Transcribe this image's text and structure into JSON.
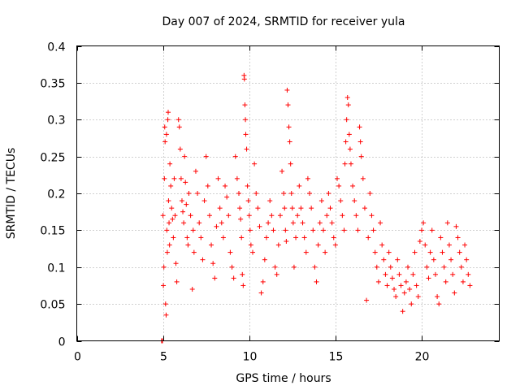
{
  "chart_data": {
    "type": "scatter",
    "title": "Day 007 of 2024, SRMTID for receiver yula",
    "xlabel": "GPS time / hours",
    "ylabel": "SRMTID / TECUs",
    "xlim": [
      0,
      24.5
    ],
    "ylim": [
      0,
      0.4
    ],
    "x_ticks": [
      0,
      5,
      10,
      15,
      20
    ],
    "x_tick_labels": [
      "0",
      "5",
      "10",
      "15",
      "20"
    ],
    "y_ticks": [
      0,
      0.05,
      0.1,
      0.15,
      0.2,
      0.25,
      0.3,
      0.35,
      0.4
    ],
    "y_tick_labels": [
      "0",
      "0.05",
      "0.1",
      "0.15",
      "0.2",
      "0.25",
      "0.3",
      "0.35",
      "0.4"
    ],
    "grid": true,
    "marker": "+",
    "color": "#ff0000",
    "series": [
      {
        "name": "SRMTID",
        "points": [
          [
            4.92,
            0.0
          ],
          [
            4.95,
            0.0
          ],
          [
            4.97,
            0.0
          ],
          [
            5.0,
            0.17
          ],
          [
            5.02,
            0.075
          ],
          [
            5.05,
            0.1
          ],
          [
            5.08,
            0.22
          ],
          [
            5.1,
            0.29
          ],
          [
            5.12,
            0.27
          ],
          [
            5.15,
            0.05
          ],
          [
            5.18,
            0.035
          ],
          [
            5.2,
            0.28
          ],
          [
            5.22,
            0.15
          ],
          [
            5.25,
            0.12
          ],
          [
            5.28,
            0.3
          ],
          [
            5.3,
            0.31
          ],
          [
            5.32,
            0.19
          ],
          [
            5.35,
            0.16
          ],
          [
            5.38,
            0.13
          ],
          [
            5.4,
            0.24
          ],
          [
            5.45,
            0.21
          ],
          [
            5.5,
            0.18
          ],
          [
            5.55,
            0.165
          ],
          [
            5.6,
            0.14
          ],
          [
            5.65,
            0.22
          ],
          [
            5.7,
            0.17
          ],
          [
            5.75,
            0.105
          ],
          [
            5.8,
            0.08
          ],
          [
            5.9,
            0.3
          ],
          [
            5.95,
            0.29
          ],
          [
            6.0,
            0.26
          ],
          [
            6.05,
            0.22
          ],
          [
            6.1,
            0.19
          ],
          [
            6.15,
            0.175
          ],
          [
            6.2,
            0.16
          ],
          [
            6.25,
            0.25
          ],
          [
            6.3,
            0.215
          ],
          [
            6.35,
            0.185
          ],
          [
            6.4,
            0.14
          ],
          [
            6.45,
            0.13
          ],
          [
            6.5,
            0.2
          ],
          [
            6.6,
            0.17
          ],
          [
            6.7,
            0.07
          ],
          [
            6.75,
            0.15
          ],
          [
            6.8,
            0.12
          ],
          [
            6.9,
            0.23
          ],
          [
            7.0,
            0.2
          ],
          [
            7.1,
            0.16
          ],
          [
            7.2,
            0.14
          ],
          [
            7.3,
            0.11
          ],
          [
            7.4,
            0.19
          ],
          [
            7.5,
            0.25
          ],
          [
            7.6,
            0.21
          ],
          [
            7.7,
            0.17
          ],
          [
            7.8,
            0.13
          ],
          [
            7.9,
            0.105
          ],
          [
            8.0,
            0.085
          ],
          [
            8.1,
            0.155
          ],
          [
            8.2,
            0.22
          ],
          [
            8.3,
            0.18
          ],
          [
            8.4,
            0.16
          ],
          [
            8.5,
            0.14
          ],
          [
            8.6,
            0.21
          ],
          [
            8.7,
            0.195
          ],
          [
            8.8,
            0.17
          ],
          [
            8.9,
            0.12
          ],
          [
            9.0,
            0.1
          ],
          [
            9.1,
            0.085
          ],
          [
            9.2,
            0.25
          ],
          [
            9.3,
            0.22
          ],
          [
            9.4,
            0.2
          ],
          [
            9.45,
            0.18
          ],
          [
            9.5,
            0.165
          ],
          [
            9.55,
            0.14
          ],
          [
            9.6,
            0.09
          ],
          [
            9.65,
            0.075
          ],
          [
            9.7,
            0.36
          ],
          [
            9.72,
            0.355
          ],
          [
            9.75,
            0.32
          ],
          [
            9.78,
            0.3
          ],
          [
            9.8,
            0.28
          ],
          [
            9.85,
            0.26
          ],
          [
            9.9,
            0.21
          ],
          [
            9.95,
            0.19
          ],
          [
            10.0,
            0.17
          ],
          [
            10.05,
            0.15
          ],
          [
            10.1,
            0.13
          ],
          [
            10.2,
            0.12
          ],
          [
            10.3,
            0.24
          ],
          [
            10.4,
            0.2
          ],
          [
            10.5,
            0.18
          ],
          [
            10.6,
            0.155
          ],
          [
            10.7,
            0.065
          ],
          [
            10.8,
            0.08
          ],
          [
            10.9,
            0.11
          ],
          [
            11.0,
            0.14
          ],
          [
            11.1,
            0.16
          ],
          [
            11.2,
            0.19
          ],
          [
            11.3,
            0.17
          ],
          [
            11.4,
            0.15
          ],
          [
            11.5,
            0.1
          ],
          [
            11.6,
            0.09
          ],
          [
            11.7,
            0.13
          ],
          [
            11.8,
            0.17
          ],
          [
            11.9,
            0.23
          ],
          [
            12.0,
            0.2
          ],
          [
            12.05,
            0.18
          ],
          [
            12.1,
            0.15
          ],
          [
            12.15,
            0.135
          ],
          [
            12.2,
            0.34
          ],
          [
            12.25,
            0.32
          ],
          [
            12.3,
            0.29
          ],
          [
            12.35,
            0.27
          ],
          [
            12.4,
            0.24
          ],
          [
            12.45,
            0.2
          ],
          [
            12.5,
            0.18
          ],
          [
            12.55,
            0.16
          ],
          [
            12.6,
            0.1
          ],
          [
            12.7,
            0.14
          ],
          [
            12.8,
            0.17
          ],
          [
            12.9,
            0.21
          ],
          [
            13.0,
            0.18
          ],
          [
            13.1,
            0.16
          ],
          [
            13.2,
            0.14
          ],
          [
            13.3,
            0.12
          ],
          [
            13.4,
            0.22
          ],
          [
            13.5,
            0.2
          ],
          [
            13.6,
            0.18
          ],
          [
            13.7,
            0.15
          ],
          [
            13.8,
            0.1
          ],
          [
            13.9,
            0.08
          ],
          [
            14.0,
            0.13
          ],
          [
            14.1,
            0.16
          ],
          [
            14.2,
            0.19
          ],
          [
            14.3,
            0.15
          ],
          [
            14.4,
            0.12
          ],
          [
            14.5,
            0.17
          ],
          [
            14.6,
            0.2
          ],
          [
            14.7,
            0.18
          ],
          [
            14.8,
            0.16
          ],
          [
            14.9,
            0.14
          ],
          [
            15.0,
            0.13
          ],
          [
            15.1,
            0.22
          ],
          [
            15.2,
            0.21
          ],
          [
            15.3,
            0.19
          ],
          [
            15.4,
            0.17
          ],
          [
            15.5,
            0.15
          ],
          [
            15.55,
            0.24
          ],
          [
            15.6,
            0.27
          ],
          [
            15.65,
            0.3
          ],
          [
            15.7,
            0.33
          ],
          [
            15.75,
            0.32
          ],
          [
            15.8,
            0.28
          ],
          [
            15.85,
            0.26
          ],
          [
            15.9,
            0.24
          ],
          [
            16.0,
            0.21
          ],
          [
            16.1,
            0.19
          ],
          [
            16.2,
            0.17
          ],
          [
            16.3,
            0.15
          ],
          [
            16.4,
            0.29
          ],
          [
            16.45,
            0.27
          ],
          [
            16.5,
            0.25
          ],
          [
            16.6,
            0.22
          ],
          [
            16.7,
            0.18
          ],
          [
            16.8,
            0.055
          ],
          [
            16.9,
            0.14
          ],
          [
            17.0,
            0.2
          ],
          [
            17.1,
            0.17
          ],
          [
            17.2,
            0.15
          ],
          [
            17.3,
            0.12
          ],
          [
            17.4,
            0.1
          ],
          [
            17.5,
            0.08
          ],
          [
            17.6,
            0.16
          ],
          [
            17.7,
            0.13
          ],
          [
            17.8,
            0.11
          ],
          [
            17.9,
            0.09
          ],
          [
            18.0,
            0.075
          ],
          [
            18.1,
            0.12
          ],
          [
            18.2,
            0.1
          ],
          [
            18.3,
            0.085
          ],
          [
            18.4,
            0.07
          ],
          [
            18.5,
            0.06
          ],
          [
            18.6,
            0.11
          ],
          [
            18.7,
            0.09
          ],
          [
            18.8,
            0.075
          ],
          [
            18.9,
            0.04
          ],
          [
            19.0,
            0.065
          ],
          [
            19.1,
            0.08
          ],
          [
            19.2,
            0.1
          ],
          [
            19.3,
            0.07
          ],
          [
            19.4,
            0.05
          ],
          [
            19.5,
            0.09
          ],
          [
            19.6,
            0.12
          ],
          [
            19.7,
            0.075
          ],
          [
            19.8,
            0.06
          ],
          [
            19.9,
            0.135
          ],
          [
            20.0,
            0.15
          ],
          [
            20.1,
            0.16
          ],
          [
            20.2,
            0.13
          ],
          [
            20.3,
            0.1
          ],
          [
            20.4,
            0.085
          ],
          [
            20.5,
            0.12
          ],
          [
            20.6,
            0.15
          ],
          [
            20.7,
            0.11
          ],
          [
            20.8,
            0.09
          ],
          [
            20.9,
            0.06
          ],
          [
            21.0,
            0.05
          ],
          [
            21.1,
            0.14
          ],
          [
            21.2,
            0.12
          ],
          [
            21.3,
            0.1
          ],
          [
            21.4,
            0.08
          ],
          [
            21.5,
            0.16
          ],
          [
            21.6,
            0.13
          ],
          [
            21.7,
            0.11
          ],
          [
            21.8,
            0.09
          ],
          [
            21.9,
            0.065
          ],
          [
            22.0,
            0.155
          ],
          [
            22.1,
            0.14
          ],
          [
            22.2,
            0.12
          ],
          [
            22.3,
            0.1
          ],
          [
            22.4,
            0.08
          ],
          [
            22.5,
            0.13
          ],
          [
            22.6,
            0.11
          ],
          [
            22.7,
            0.09
          ],
          [
            22.8,
            0.075
          ]
        ]
      }
    ]
  }
}
